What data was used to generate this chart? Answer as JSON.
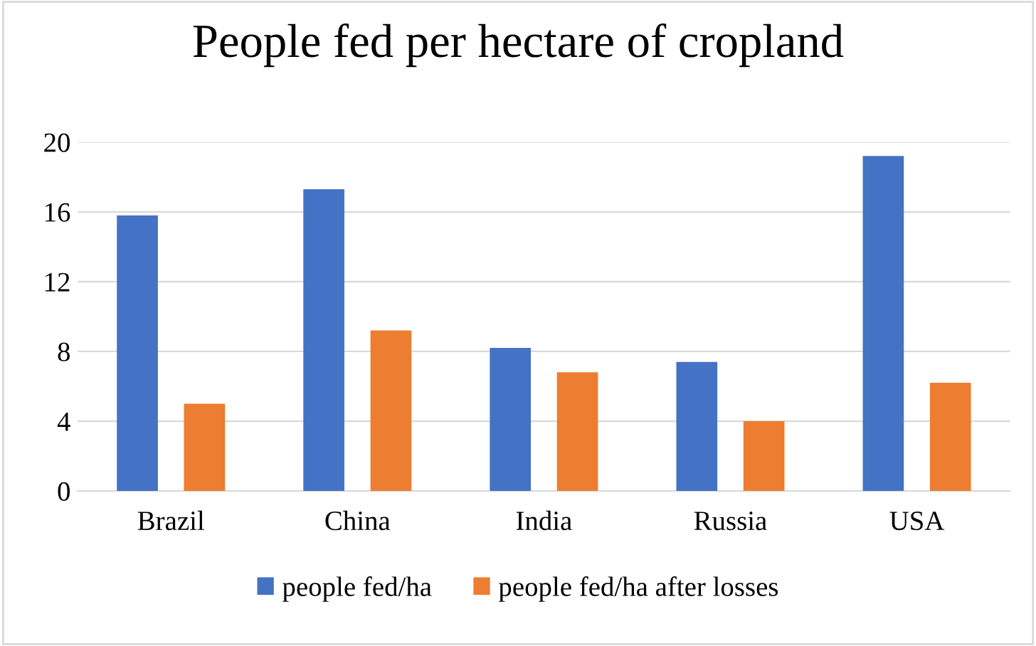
{
  "chart_data": {
    "type": "bar",
    "title": "People fed per hectare of cropland",
    "categories": [
      "Brazil",
      "China",
      "India",
      "Russia",
      "USA"
    ],
    "series": [
      {
        "name": "people fed/ha",
        "color": "#4472c4",
        "values": [
          15.8,
          17.3,
          8.2,
          7.4,
          19.2
        ]
      },
      {
        "name": "people fed/ha after losses",
        "color": "#ed7d31",
        "values": [
          5.0,
          9.2,
          6.8,
          4.0,
          6.2
        ]
      }
    ],
    "ylim": [
      0,
      20
    ],
    "yticks": [
      0,
      4,
      8,
      12,
      16,
      20
    ],
    "grid": "y",
    "legend": "bottom"
  }
}
